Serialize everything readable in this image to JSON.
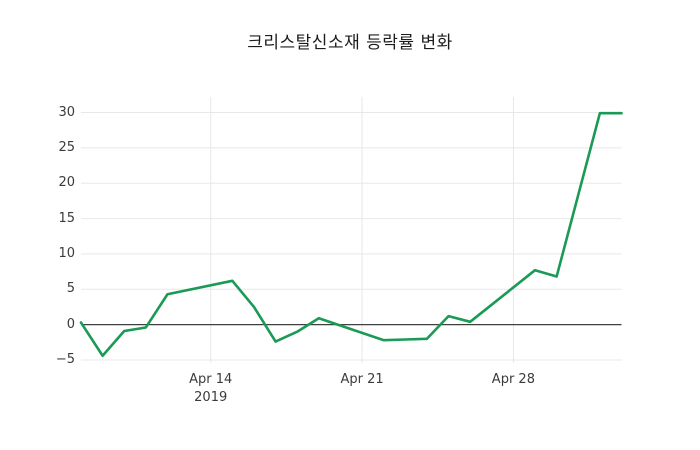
{
  "title": "크리스탈신소재 등락률 변화",
  "chart_data": {
    "type": "line",
    "title": "크리스탈신소재 등락률 변화",
    "xlabel": "",
    "ylabel": "",
    "x_year": "2019",
    "x": [
      "Apr 8",
      "Apr 9",
      "Apr 10",
      "Apr 11",
      "Apr 12",
      "Apr 15",
      "Apr 16",
      "Apr 17",
      "Apr 18",
      "Apr 19",
      "Apr 22",
      "Apr 23",
      "Apr 24",
      "Apr 25",
      "Apr 26",
      "Apr 29",
      "Apr 30",
      "May 2",
      "May 3"
    ],
    "x_day_offsets": [
      0,
      1,
      2,
      3,
      4,
      7,
      8,
      9,
      10,
      11,
      14,
      15,
      16,
      17,
      18,
      21,
      22,
      24,
      25
    ],
    "series": [
      {
        "name": "등락률",
        "color": "#1a9a55",
        "values": [
          0.3,
          -4.4,
          -0.9,
          -0.4,
          4.3,
          6.2,
          2.5,
          -2.4,
          -1.0,
          0.9,
          -2.2,
          -2.1,
          -2.0,
          1.2,
          0.4,
          7.7,
          6.8,
          29.9,
          29.9
        ]
      }
    ],
    "ylim": [
      -5,
      30
    ],
    "x_range_days": [
      0,
      25
    ],
    "yticks": [
      {
        "value": 30,
        "label": "30"
      },
      {
        "value": 25,
        "label": "25"
      },
      {
        "value": 20,
        "label": "20"
      },
      {
        "value": 15,
        "label": "15"
      },
      {
        "value": 10,
        "label": "10"
      },
      {
        "value": 5,
        "label": "5"
      },
      {
        "value": 0,
        "label": "0"
      },
      {
        "value": -5,
        "label": "−5"
      }
    ],
    "xticks": [
      {
        "day_offset": 6,
        "label": "Apr 14",
        "sublabel": "2019"
      },
      {
        "day_offset": 13,
        "label": "Apr 21",
        "sublabel": ""
      },
      {
        "day_offset": 20,
        "label": "Apr 28",
        "sublabel": ""
      }
    ],
    "grid": true,
    "zero_line": true,
    "legend": false
  },
  "colors": {
    "line": "#1a9a55",
    "grid": "#e8e8e8",
    "zero_line": "#404040",
    "tick_text": "#3b3b3b",
    "title_text": "#1c1c1c",
    "background": "#ffffff"
  }
}
